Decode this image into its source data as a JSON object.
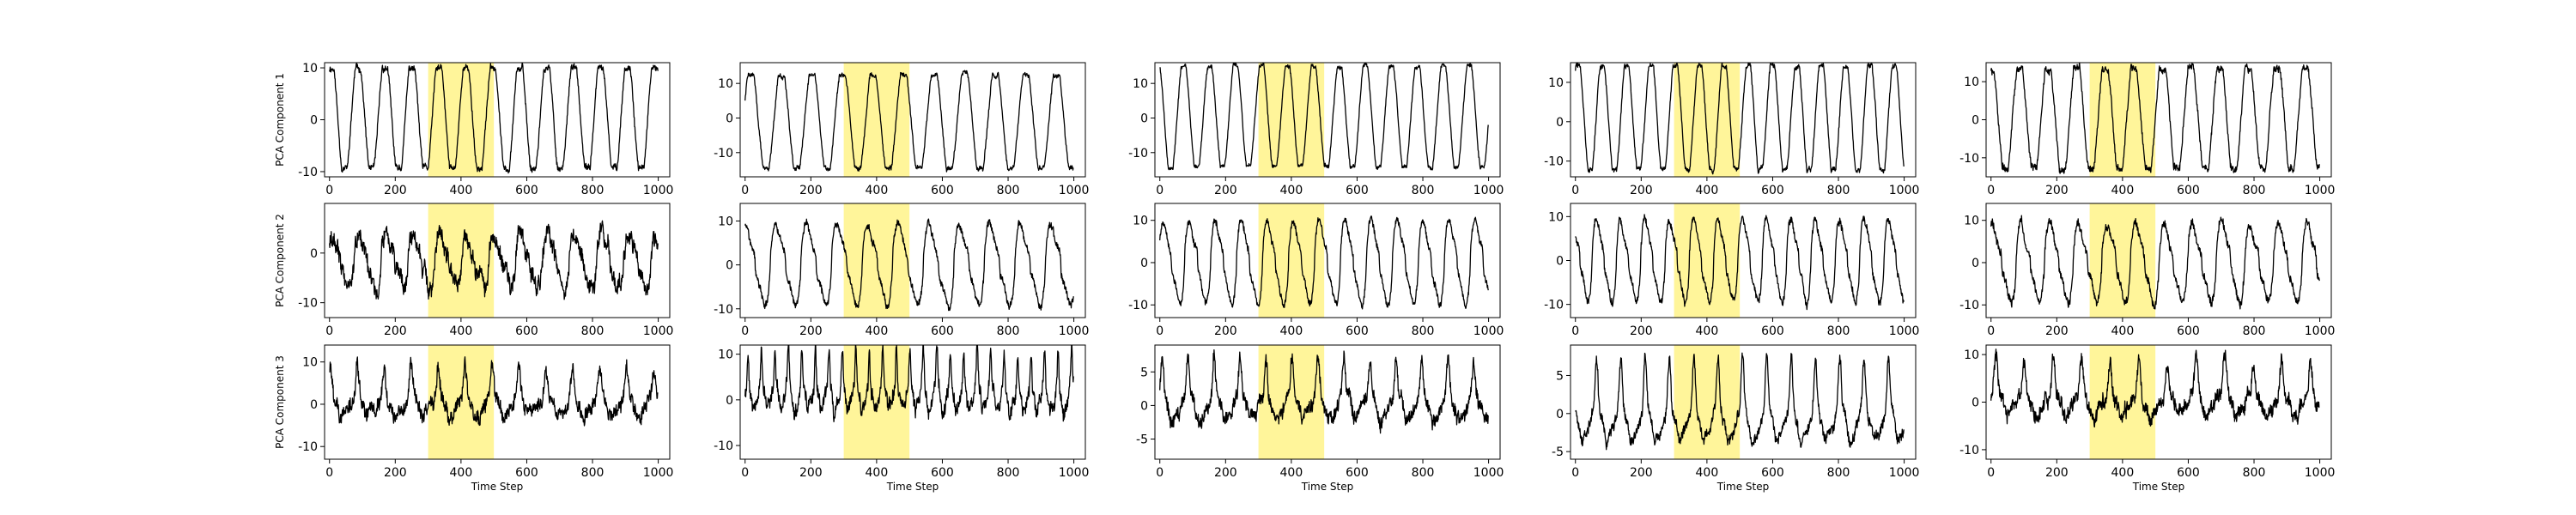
{
  "figure": {
    "background": "#ffffff",
    "line_color": "#000000",
    "highlight_color": "#fff59a",
    "highlight_range": [
      300,
      500
    ]
  },
  "chart_data": [
    {
      "type": "line",
      "row": 0,
      "col": 0,
      "ylabel": "PCA Component 1",
      "xlabel": "",
      "xlim": [
        -15,
        1035
      ],
      "ylim": [
        -11,
        11
      ],
      "xticks": [
        0,
        200,
        400,
        600,
        800,
        1000
      ],
      "yticks": [
        -10,
        0,
        10
      ],
      "n": 1000,
      "highlight": [
        300,
        500
      ],
      "series": [
        {
          "wave": "clipped_sine",
          "period": 82,
          "phase": 1.2,
          "offset": 0.3,
          "amp": 9.6,
          "clip": 0.8,
          "noise": 0.9,
          "seed": 11
        }
      ]
    },
    {
      "type": "line",
      "row": 0,
      "col": 1,
      "ylabel": "",
      "xlabel": "",
      "xlim": [
        -15,
        1035
      ],
      "ylim": [
        -17,
        16
      ],
      "xticks": [
        0,
        200,
        400,
        600,
        800,
        1000
      ],
      "yticks": [
        -10,
        0,
        10
      ],
      "n": 1000,
      "highlight": [
        300,
        500
      ],
      "series": [
        {
          "wave": "clipped_sine",
          "period": 93,
          "phase": 0.4,
          "offset": -1.0,
          "amp": 13.5,
          "clip": 0.82,
          "noise": 1.0,
          "seed": 22
        }
      ]
    },
    {
      "type": "line",
      "row": 0,
      "col": 2,
      "ylabel": "",
      "xlabel": "",
      "xlim": [
        -15,
        1035
      ],
      "ylim": [
        -17,
        16
      ],
      "xticks": [
        0,
        200,
        400,
        600,
        800,
        1000
      ],
      "yticks": [
        -10,
        0,
        10
      ],
      "n": 1000,
      "highlight": [
        300,
        500
      ],
      "series": [
        {
          "wave": "clipped_sine",
          "period": 79,
          "phase": 2.1,
          "offset": 0.5,
          "amp": 14.5,
          "clip": 0.86,
          "noise": 0.9,
          "seed": 33
        }
      ]
    },
    {
      "type": "line",
      "row": 0,
      "col": 3,
      "ylabel": "",
      "xlabel": "",
      "xlim": [
        -15,
        1035
      ],
      "ylim": [
        -14,
        15
      ],
      "xticks": [
        0,
        200,
        400,
        600,
        800,
        1000
      ],
      "yticks": [
        -10,
        0,
        10
      ],
      "n": 1000,
      "highlight": [
        300,
        500
      ],
      "series": [
        {
          "wave": "clipped_sine",
          "period": 74,
          "phase": 0.9,
          "offset": 1.0,
          "amp": 13.2,
          "clip": 0.84,
          "noise": 1.0,
          "seed": 44
        }
      ]
    },
    {
      "type": "line",
      "row": 0,
      "col": 4,
      "ylabel": "",
      "xlabel": "",
      "xlim": [
        -15,
        1035
      ],
      "ylim": [
        -15,
        15
      ],
      "xticks": [
        0,
        200,
        400,
        600,
        800,
        1000
      ],
      "yticks": [
        -10,
        0,
        10
      ],
      "n": 1000,
      "highlight": [
        300,
        500
      ],
      "series": [
        {
          "wave": "clipped_sine",
          "period": 87,
          "phase": 1.6,
          "offset": 0.4,
          "amp": 13.0,
          "clip": 0.8,
          "noise": 1.5,
          "seed": 55
        }
      ]
    },
    {
      "type": "line",
      "row": 1,
      "col": 0,
      "ylabel": "PCA Component 2",
      "xlabel": "",
      "xlim": [
        -15,
        1035
      ],
      "ylim": [
        -13,
        10
      ],
      "xticks": [
        0,
        200,
        400,
        600,
        800,
        1000
      ],
      "yticks": [
        -10,
        0
      ],
      "n": 1000,
      "highlight": [
        300,
        500
      ],
      "series": [
        {
          "wave": "peaky",
          "period": 82,
          "phase": 0.6,
          "offset": -1.5,
          "amp": 5.0,
          "clip": 1,
          "noise": 2.6,
          "seed": 66
        }
      ]
    },
    {
      "type": "line",
      "row": 1,
      "col": 1,
      "ylabel": "",
      "xlabel": "",
      "xlim": [
        -15,
        1035
      ],
      "ylim": [
        -12,
        14
      ],
      "xticks": [
        0,
        200,
        400,
        600,
        800,
        1000
      ],
      "yticks": [
        -10,
        0,
        10
      ],
      "n": 1000,
      "highlight": [
        300,
        500
      ],
      "series": [
        {
          "wave": "peaky",
          "period": 93,
          "phase": 1.1,
          "offset": 0.0,
          "amp": 9.0,
          "clip": 1,
          "noise": 1.2,
          "seed": 77
        }
      ]
    },
    {
      "type": "line",
      "row": 1,
      "col": 2,
      "ylabel": "",
      "xlabel": "",
      "xlim": [
        -15,
        1035
      ],
      "ylim": [
        -13,
        14
      ],
      "xticks": [
        0,
        200,
        400,
        600,
        800,
        1000
      ],
      "yticks": [
        -10,
        0,
        10
      ],
      "n": 1000,
      "highlight": [
        300,
        500
      ],
      "series": [
        {
          "wave": "peaky",
          "period": 79,
          "phase": 0.3,
          "offset": 0.0,
          "amp": 9.5,
          "clip": 1,
          "noise": 1.2,
          "seed": 88
        }
      ]
    },
    {
      "type": "line",
      "row": 1,
      "col": 3,
      "ylabel": "",
      "xlabel": "",
      "xlim": [
        -15,
        1035
      ],
      "ylim": [
        -13,
        13
      ],
      "xticks": [
        0,
        200,
        400,
        600,
        800,
        1000
      ],
      "yticks": [
        -10,
        0,
        10
      ],
      "n": 1000,
      "highlight": [
        300,
        500
      ],
      "series": [
        {
          "wave": "peaky",
          "period": 74,
          "phase": 2.0,
          "offset": 0.0,
          "amp": 9.0,
          "clip": 1,
          "noise": 1.3,
          "seed": 99
        }
      ]
    },
    {
      "type": "line",
      "row": 1,
      "col": 4,
      "ylabel": "",
      "xlabel": "",
      "xlim": [
        -15,
        1035
      ],
      "ylim": [
        -13,
        14
      ],
      "xticks": [
        0,
        200,
        400,
        600,
        800,
        1000
      ],
      "yticks": [
        -10,
        0,
        10
      ],
      "n": 1000,
      "highlight": [
        300,
        500
      ],
      "series": [
        {
          "wave": "peaky",
          "period": 87,
          "phase": 0.8,
          "offset": 0.0,
          "amp": 9.0,
          "clip": 1,
          "noise": 1.6,
          "seed": 111
        }
      ]
    },
    {
      "type": "line",
      "row": 2,
      "col": 0,
      "ylabel": "PCA Component 3",
      "xlabel": "Time Step",
      "xlim": [
        -15,
        1035
      ],
      "ylim": [
        -13,
        14
      ],
      "xticks": [
        0,
        200,
        400,
        600,
        800,
        1000
      ],
      "yticks": [
        -10,
        0,
        10
      ],
      "n": 1000,
      "highlight": [
        300,
        500
      ],
      "series": [
        {
          "wave": "spiky",
          "period": 82,
          "phase": 1.4,
          "offset": 0.0,
          "amp": 4.5,
          "clip": 1,
          "noise": 2.6,
          "seed": 122
        }
      ]
    },
    {
      "type": "line",
      "row": 2,
      "col": 1,
      "ylabel": "",
      "xlabel": "Time Step",
      "xlim": [
        -15,
        1035
      ],
      "ylim": [
        -13,
        12
      ],
      "xticks": [
        0,
        200,
        400,
        600,
        800,
        1000
      ],
      "yticks": [
        -10,
        0,
        10
      ],
      "n": 1000,
      "highlight": [
        300,
        500
      ],
      "series": [
        {
          "wave": "spiky",
          "period": 41,
          "phase": 0.2,
          "offset": 1.0,
          "amp": 5.0,
          "clip": 1,
          "noise": 2.4,
          "seed": 133
        }
      ]
    },
    {
      "type": "line",
      "row": 2,
      "col": 2,
      "ylabel": "",
      "xlabel": "Time Step",
      "xlim": [
        -15,
        1035
      ],
      "ylim": [
        -8,
        9
      ],
      "xticks": [
        0,
        200,
        400,
        600,
        800,
        1000
      ],
      "yticks": [
        -5,
        0,
        5
      ],
      "n": 1000,
      "highlight": [
        300,
        500
      ],
      "series": [
        {
          "wave": "spiky",
          "period": 79,
          "phase": 1.0,
          "offset": 0.0,
          "amp": 3.5,
          "clip": 1,
          "noise": 1.6,
          "seed": 144
        }
      ]
    },
    {
      "type": "line",
      "row": 2,
      "col": 3,
      "ylabel": "",
      "xlabel": "Time Step",
      "xlim": [
        -15,
        1035
      ],
      "ylim": [
        -6,
        9
      ],
      "xticks": [
        0,
        200,
        400,
        600,
        800,
        1000
      ],
      "yticks": [
        -5,
        0,
        5
      ],
      "n": 1000,
      "highlight": [
        300,
        500
      ],
      "series": [
        {
          "wave": "spiky",
          "period": 74,
          "phase": 2.4,
          "offset": -1.0,
          "amp": 4.2,
          "clip": 1,
          "noise": 1.1,
          "seed": 155
        }
      ]
    },
    {
      "type": "line",
      "row": 2,
      "col": 4,
      "ylabel": "",
      "xlabel": "Time Step",
      "xlim": [
        -15,
        1035
      ],
      "ylim": [
        -12,
        12
      ],
      "xticks": [
        0,
        200,
        400,
        600,
        800,
        1000
      ],
      "yticks": [
        -10,
        0,
        10
      ],
      "n": 1000,
      "highlight": [
        300,
        500
      ],
      "series": [
        {
          "wave": "spiky",
          "period": 87,
          "phase": 0.5,
          "offset": 0.0,
          "amp": 4.5,
          "clip": 1,
          "noise": 2.4,
          "seed": 166
        }
      ]
    }
  ]
}
